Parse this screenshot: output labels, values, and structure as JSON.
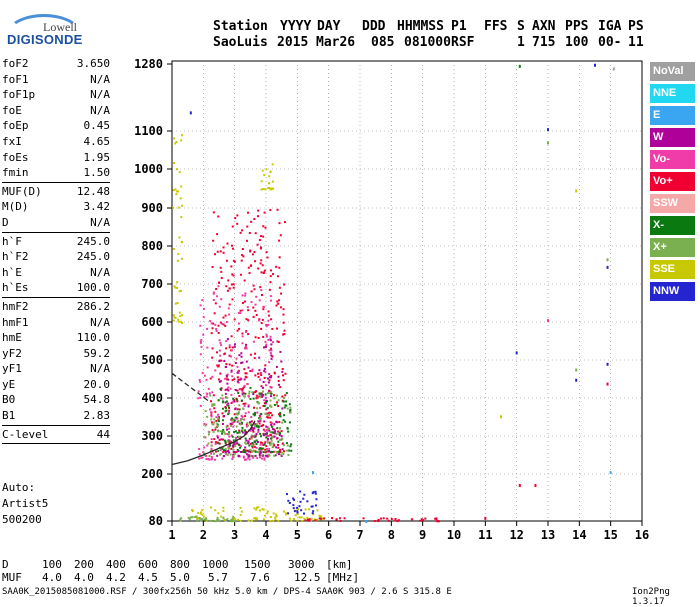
{
  "logo": {
    "line1": "Lowell",
    "line2": "DIGISONDE"
  },
  "header": {
    "row1": [
      "Station",
      "YYYY",
      "DAY",
      "DDD",
      "HHMMSS",
      "P1",
      "FFS",
      "S",
      "AXN",
      "PPS",
      "IGA",
      "PS"
    ],
    "row2": [
      "SaoLuis",
      "2015",
      "Mar26",
      "085",
      "081000",
      "RSF",
      "1",
      "715",
      "100",
      "00-",
      "11"
    ]
  },
  "params": [
    {
      "name": "foF2",
      "value": "3.650"
    },
    {
      "name": "foF1",
      "value": "N/A"
    },
    {
      "name": "foF1p",
      "value": "N/A"
    },
    {
      "name": "foE",
      "value": "N/A"
    },
    {
      "name": "foEp",
      "value": "0.45"
    },
    {
      "name": "fxI",
      "value": "4.65"
    },
    {
      "name": "foEs",
      "value": "1.95"
    },
    {
      "name": "fmin",
      "value": "1.50"
    },
    {
      "sep": true
    },
    {
      "name": "MUF(D)",
      "value": "12.48"
    },
    {
      "name": "M(D)",
      "value": "3.42"
    },
    {
      "name": "D",
      "value": "N/A"
    },
    {
      "sep": true
    },
    {
      "name": "h`F",
      "value": "245.0"
    },
    {
      "name": "h`F2",
      "value": "245.0"
    },
    {
      "name": "h`E",
      "value": "N/A"
    },
    {
      "name": "h`Es",
      "value": "100.0"
    },
    {
      "sep": true
    },
    {
      "name": "hmF2",
      "value": "286.2"
    },
    {
      "name": "hmF1",
      "value": "N/A"
    },
    {
      "name": "hmE",
      "value": "110.0"
    },
    {
      "name": "yF2",
      "value": "59.2"
    },
    {
      "name": "yF1",
      "value": "N/A"
    },
    {
      "name": "yE",
      "value": "20.0"
    },
    {
      "name": "B0",
      "value": "54.8"
    },
    {
      "name": "B1",
      "value": "2.83"
    },
    {
      "sep": true
    },
    {
      "name": "C-level",
      "value": "44"
    },
    {
      "sep": true
    }
  ],
  "autoscaling": {
    "line1": "Auto:",
    "line2": "Artist5",
    "line3": "500200"
  },
  "legend": [
    {
      "label": "NoVal",
      "color": "#a0a0a0"
    },
    {
      "label": "NNE",
      "color": "#22d8f0"
    },
    {
      "label": "E",
      "color": "#3aa6f2"
    },
    {
      "label": "W",
      "color": "#b0009a"
    },
    {
      "label": "Vo-",
      "color": "#f03ca8"
    },
    {
      "label": "Vo+",
      "color": "#f00030"
    },
    {
      "label": "SSW",
      "color": "#f4a8a8"
    },
    {
      "label": "X-",
      "color": "#0a7a10"
    },
    {
      "label": "X+",
      "color": "#7ab050"
    },
    {
      "label": "SSE",
      "color": "#c8c800"
    },
    {
      "label": "NNW",
      "color": "#2424d0"
    }
  ],
  "distance_table": {
    "d_label": "D",
    "d_values": [
      "100",
      "200",
      "400",
      "600",
      "800",
      "1000",
      "1500",
      "3000"
    ],
    "d_unit": "[km]",
    "muf_label": "MUF",
    "muf_values": [
      "4.0",
      "4.0",
      "4.2",
      "4.5",
      "5.0",
      "5.7",
      "7.6",
      "12.5"
    ],
    "muf_unit": "[MHz]"
  },
  "footer": {
    "text": "SAA0K_2015085081000.RSF / 300fx256h 50 kHz 5.0 km / DPS-4 SAA0K 903 / 2.6 S 315.8 E",
    "version": "Ion2Png 1.3.17"
  },
  "chart_data": {
    "type": "scatter",
    "xlim": [
      1,
      16
    ],
    "ylim": [
      80,
      1290
    ],
    "x_ticks": [
      1,
      2,
      3,
      4,
      5,
      6,
      7,
      8,
      9,
      10,
      11,
      12,
      13,
      14,
      15,
      16
    ],
    "y_ticks": [
      80,
      200,
      300,
      400,
      500,
      600,
      700,
      800,
      900,
      1000,
      1100,
      1280
    ],
    "grid": true,
    "traces": [
      {
        "name": "F2 trace",
        "color": "#2a2a2a",
        "style": "solid",
        "x": [
          1.0,
          1.5,
          2.0,
          2.5,
          3.0,
          3.3,
          3.5,
          3.65
        ],
        "y": [
          225,
          235,
          250,
          268,
          285,
          300,
          318,
          340
        ]
      },
      {
        "name": "model",
        "color": "#2a2a2a",
        "style": "dashed",
        "x": [
          1.0,
          1.4,
          1.8,
          2.2
        ],
        "y": [
          465,
          440,
          415,
          390
        ]
      }
    ],
    "echo_clusters": [
      {
        "color": "#f00030",
        "x_range": [
          2.2,
          4.6
        ],
        "y_range": [
          260,
          900
        ],
        "count": 420
      },
      {
        "color": "#f03ca8",
        "x_range": [
          1.8,
          4.2
        ],
        "y_range": [
          240,
          700
        ],
        "count": 260
      },
      {
        "color": "#b0009a",
        "x_range": [
          2.4,
          4.5
        ],
        "y_range": [
          250,
          560
        ],
        "count": 160
      },
      {
        "color": "#0a7a10",
        "x_range": [
          2.4,
          4.8
        ],
        "y_range": [
          260,
          430
        ],
        "count": 140
      },
      {
        "color": "#7ab050",
        "x_range": [
          2.0,
          4.8
        ],
        "y_range": [
          250,
          420
        ],
        "count": 140
      },
      {
        "color": "#c8c800",
        "x_range": [
          3.8,
          4.2
        ],
        "y_range": [
          950,
          1020
        ],
        "count": 20
      },
      {
        "color": "#c8c800",
        "x_range": [
          1.0,
          1.3
        ],
        "y_range": [
          600,
          1100
        ],
        "count": 45
      },
      {
        "color": "#c8c800",
        "x_range": [
          1.5,
          5.8
        ],
        "y_range": [
          82,
          118
        ],
        "count": 90
      },
      {
        "color": "#2424d0",
        "x_range": [
          4.6,
          5.6
        ],
        "y_range": [
          100,
          160
        ],
        "count": 30
      },
      {
        "color": "#7ab050",
        "x_range": [
          1.2,
          3.0
        ],
        "y_range": [
          82,
          95
        ],
        "count": 40
      },
      {
        "color": "#f00030",
        "x_range": [
          5.2,
          9.6
        ],
        "y_range": [
          82,
          90
        ],
        "count": 40
      }
    ],
    "isolated_points": [
      {
        "x": 12.1,
        "y": 1275,
        "color": "#0a7a10"
      },
      {
        "x": 14.5,
        "y": 1278,
        "color": "#2424d0"
      },
      {
        "x": 15.1,
        "y": 1268,
        "color": "#a0a0a0"
      },
      {
        "x": 13.0,
        "y": 1105,
        "color": "#2424d0"
      },
      {
        "x": 13.0,
        "y": 1070,
        "color": "#7ab050"
      },
      {
        "x": 13.9,
        "y": 945,
        "color": "#c8c800"
      },
      {
        "x": 14.9,
        "y": 765,
        "color": "#7ab050"
      },
      {
        "x": 14.9,
        "y": 745,
        "color": "#2424d0"
      },
      {
        "x": 12.0,
        "y": 520,
        "color": "#2424d0"
      },
      {
        "x": 13.0,
        "y": 605,
        "color": "#f03ca8"
      },
      {
        "x": 13.9,
        "y": 475,
        "color": "#7ab050"
      },
      {
        "x": 13.9,
        "y": 448,
        "color": "#2424d0"
      },
      {
        "x": 14.9,
        "y": 490,
        "color": "#2424d0"
      },
      {
        "x": 14.9,
        "y": 438,
        "color": "#f00030"
      },
      {
        "x": 11.5,
        "y": 352,
        "color": "#c8c800"
      },
      {
        "x": 12.1,
        "y": 172,
        "color": "#f00030"
      },
      {
        "x": 12.6,
        "y": 172,
        "color": "#f00030"
      },
      {
        "x": 15.0,
        "y": 205,
        "color": "#3aa6f2"
      },
      {
        "x": 1.6,
        "y": 1150,
        "color": "#2424d0"
      },
      {
        "x": 5.5,
        "y": 205,
        "color": "#3aa6f2"
      },
      {
        "x": 7.2,
        "y": 80,
        "color": "#3aa6f2"
      },
      {
        "x": 11.0,
        "y": 88,
        "color": "#f00030"
      }
    ]
  }
}
